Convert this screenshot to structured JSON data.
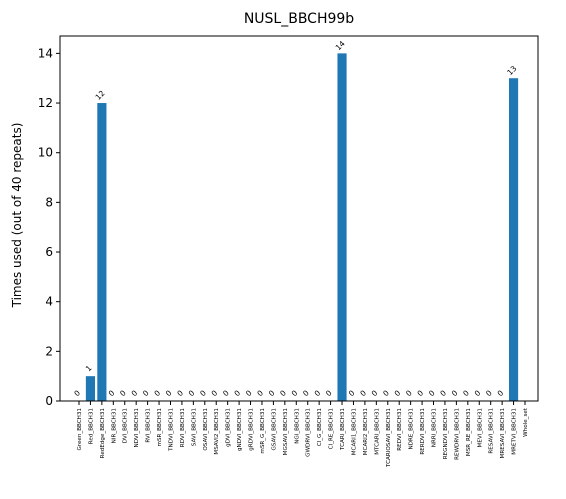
{
  "chart_data": {
    "type": "bar",
    "title": "NUSL_BBCH99b",
    "xlabel": "",
    "ylabel": "Times used (out of 40 repeats)",
    "ylim": [
      0,
      14.7
    ],
    "yticks": [
      0,
      2,
      4,
      6,
      8,
      10,
      12,
      14
    ],
    "grid": false,
    "bar_color": "#1f77b4",
    "categories": [
      "Green_BBCH31",
      "Red_BBCH31",
      "RedEdge_BBCH31",
      "NIR_BBCH31",
      "DVI_BBCH31",
      "NDVI_BBCH31",
      "RVI_BBCH31",
      "mSR_BBCH31",
      "TNDVI_BBCH31",
      "RDVI_BBCH31",
      "SAVI_BBCH31",
      "OSAVI_BBCH31",
      "MSAVI2_BBCH31",
      "gDVI_BBCH31",
      "gNDVI_BBCH31",
      "gRDVI_BBCH31",
      "mSR_G_BBCH31",
      "GSAVI_BBCH31",
      "MGSAVI_BBCH31",
      "NGI_BBCH31",
      "GWDRVI_BBCH31",
      "CI_G_BBCH31",
      "CI_RE_BBCH31",
      "TCARI_BBCH31",
      "MCARI1_BBCH31",
      "MCARI2_BBCH31",
      "MTCARI_BBCH31",
      "TCARIOSAVI_BBCH31",
      "REDVI_BBCH31",
      "NDRE_BBCH31",
      "RERDVI_BBCH31",
      "NRRI_BBCH31",
      "REGNDVI_BBCH31",
      "REWDRVI_BBCH31",
      "MSR_RE_BBCH31",
      "MEVI_BBCH31",
      "RESAVI_BBCH31",
      "MRESAVI_BBCH31",
      "MRETVI_BBCH31",
      "Whole_set"
    ],
    "values": [
      0,
      1,
      12,
      0,
      0,
      0,
      0,
      0,
      0,
      0,
      0,
      0,
      0,
      0,
      0,
      0,
      0,
      0,
      0,
      0,
      0,
      0,
      0,
      14,
      0,
      0,
      0,
      0,
      0,
      0,
      0,
      0,
      0,
      0,
      0,
      0,
      0,
      0,
      13,
      null
    ],
    "data_labels": [
      "0",
      "1",
      "12",
      "0",
      "0",
      "0",
      "0",
      "0",
      "0",
      "0",
      "0",
      "0",
      "0",
      "0",
      "0",
      "0",
      "0",
      "0",
      "0",
      "0",
      "0",
      "0",
      "0",
      "14",
      "0",
      "0",
      "0",
      "0",
      "0",
      "0",
      "0",
      "0",
      "0",
      "0",
      "0",
      "0",
      "0",
      "0",
      "13",
      ""
    ]
  }
}
